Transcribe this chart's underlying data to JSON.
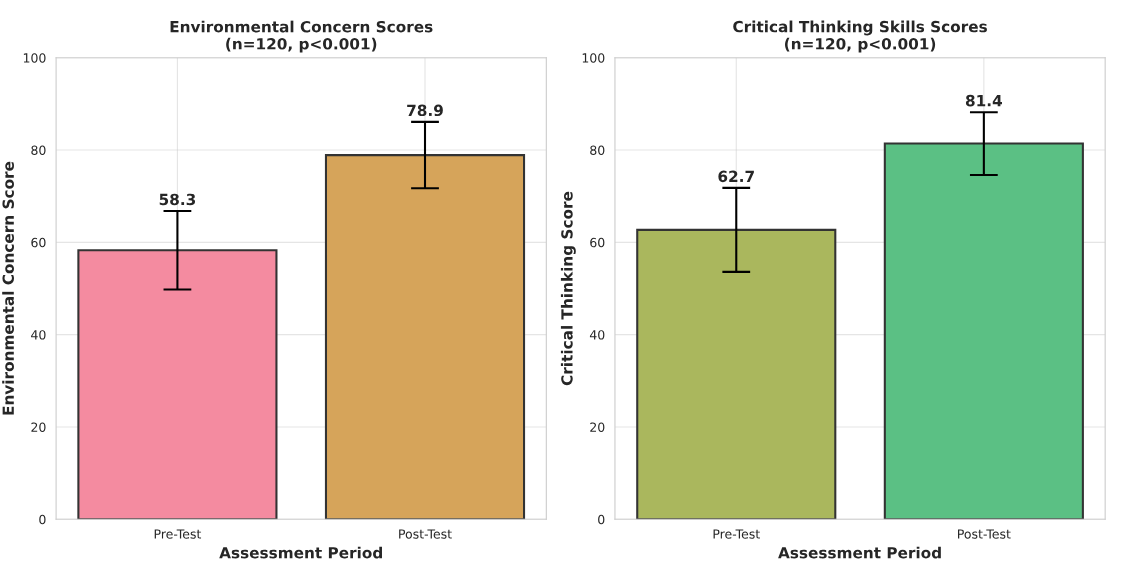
{
  "chart_data": [
    {
      "type": "bar",
      "title": "Environmental Concern Scores\n(n=120, p<0.001)",
      "xlabel": "Assessment Period",
      "ylabel": "Environmental Concern Score",
      "categories": [
        "Pre-Test",
        "Post-Test"
      ],
      "values": [
        58.3,
        78.9
      ],
      "colors": [
        "#f48ba0",
        "#d6a45a"
      ],
      "errors": [
        8.5,
        7.2
      ],
      "ylim": [
        0,
        100
      ],
      "yticks": [
        0,
        20,
        40,
        60,
        80,
        100
      ],
      "grid": true,
      "data_labels": true
    },
    {
      "type": "bar",
      "title": "Critical Thinking Skills Scores\n(n=120, p<0.001)",
      "xlabel": "Assessment Period",
      "ylabel": "Critical Thinking Score",
      "categories": [
        "Pre-Test",
        "Post-Test"
      ],
      "values": [
        62.7,
        81.4
      ],
      "colors": [
        "#aab75d",
        "#5bc084"
      ],
      "errors": [
        9.1,
        6.8
      ],
      "ylim": [
        0,
        100
      ],
      "yticks": [
        0,
        20,
        40,
        60,
        80,
        100
      ],
      "grid": true,
      "data_labels": true
    }
  ]
}
